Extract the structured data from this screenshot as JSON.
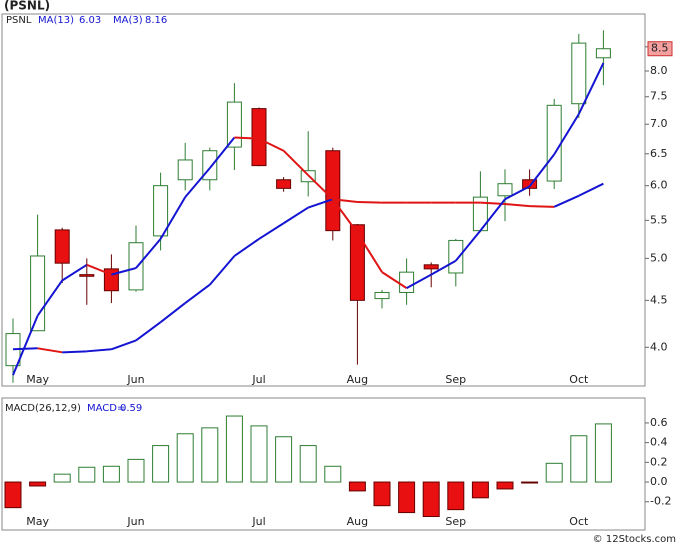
{
  "chart_data": [
    {
      "type": "candlestick",
      "title": "(PSNL)",
      "symbol": "PSNL",
      "categories": [
        null,
        "May",
        null,
        null,
        null,
        "Jun",
        null,
        null,
        null,
        null,
        "Jul",
        null,
        null,
        null,
        "Aug",
        null,
        null,
        null,
        "Sep",
        null,
        null,
        null,
        null,
        "Oct",
        null
      ],
      "open": [
        3.82,
        4.17,
        5.37,
        4.8,
        4.87,
        4.62,
        5.29,
        6.09,
        6.09,
        6.61,
        7.28,
        6.09,
        6.06,
        6.55,
        5.44,
        4.52,
        4.59,
        4.92,
        4.82,
        5.36,
        5.85,
        6.09,
        6.07,
        7.37,
        8.27
      ],
      "high": [
        4.3,
        5.58,
        5.4,
        5.0,
        5.05,
        5.43,
        6.2,
        6.68,
        6.6,
        7.76,
        7.3,
        6.13,
        6.88,
        6.6,
        5.45,
        4.62,
        5.0,
        4.95,
        5.25,
        6.22,
        6.25,
        6.25,
        7.46,
        8.78,
        8.86
      ],
      "low": [
        3.66,
        4.17,
        4.7,
        4.45,
        4.47,
        4.6,
        5.1,
        5.93,
        5.93,
        6.24,
        6.3,
        5.91,
        5.84,
        5.23,
        3.83,
        4.41,
        4.45,
        4.65,
        4.66,
        5.34,
        5.49,
        5.85,
        5.95,
        7.11,
        7.72
      ],
      "close": [
        4.14,
        5.03,
        4.94,
        4.78,
        4.61,
        5.2,
        6.0,
        6.4,
        6.55,
        7.4,
        6.31,
        5.96,
        6.23,
        5.36,
        4.5,
        4.59,
        4.83,
        4.87,
        5.23,
        5.83,
        6.03,
        5.96,
        7.34,
        8.58,
        8.46
      ],
      "up_color": "#2e7d32",
      "down_color": "#e81010",
      "series": [
        {
          "name": "MA(13)",
          "color": "#1414d2",
          "down_color": "#e01414",
          "values": [
            3.98,
            3.99,
            3.95,
            3.96,
            3.98,
            4.07,
            4.26,
            4.47,
            4.68,
            5.03,
            5.25,
            5.46,
            5.68,
            5.8,
            5.76,
            5.75,
            5.75,
            5.75,
            5.75,
            5.75,
            5.73,
            5.7,
            5.69,
            5.85,
            6.03
          ]
        },
        {
          "name": "MA(3)",
          "color": "#1414d2",
          "down_color": "#e01414",
          "values": [
            3.73,
            4.33,
            4.73,
            4.92,
            4.8,
            4.88,
            5.25,
            5.83,
            6.27,
            6.77,
            6.75,
            6.55,
            6.16,
            5.8,
            5.33,
            4.83,
            4.64,
            4.8,
            4.97,
            5.36,
            5.8,
            5.99,
            6.49,
            7.18,
            8.16
          ]
        }
      ],
      "ylim": [
        3.63,
        9.23
      ],
      "log_scale": true,
      "yticks": [
        {
          "value": 4,
          "label": "4.0"
        },
        4.5,
        {
          "value": 5,
          "label": "5.0"
        },
        5.5,
        {
          "value": 6,
          "label": "6.0"
        },
        6.5,
        {
          "value": 7,
          "label": "7.0"
        },
        7.5,
        {
          "value": 8,
          "label": "8.0"
        },
        8.5
      ],
      "last_label": "8.5"
    },
    {
      "type": "bar",
      "title": "MACD(26,12,9)",
      "value_prefix": "MACD=",
      "categories": [
        null,
        "May",
        null,
        null,
        null,
        "Jun",
        null,
        null,
        null,
        null,
        "Jul",
        null,
        null,
        null,
        "Aug",
        null,
        null,
        null,
        "Sep",
        null,
        null,
        null,
        null,
        "Oct",
        null
      ],
      "values": [
        -0.26,
        -0.04,
        0.08,
        0.15,
        0.16,
        0.23,
        0.37,
        0.49,
        0.55,
        0.67,
        0.57,
        0.46,
        0.37,
        0.16,
        -0.09,
        -0.24,
        -0.31,
        -0.35,
        -0.28,
        -0.16,
        -0.07,
        -0.01,
        0.19,
        0.47,
        0.59
      ],
      "up_color": "#2e7d32",
      "down_color": "#e81010",
      "ylim": [
        -0.365,
        0.853
      ],
      "yticks": [
        -0.2,
        {
          "value": 0,
          "label": "0.0"
        },
        0.2,
        0.4,
        0.6
      ]
    }
  ],
  "footer": "© 12Stocks.com"
}
